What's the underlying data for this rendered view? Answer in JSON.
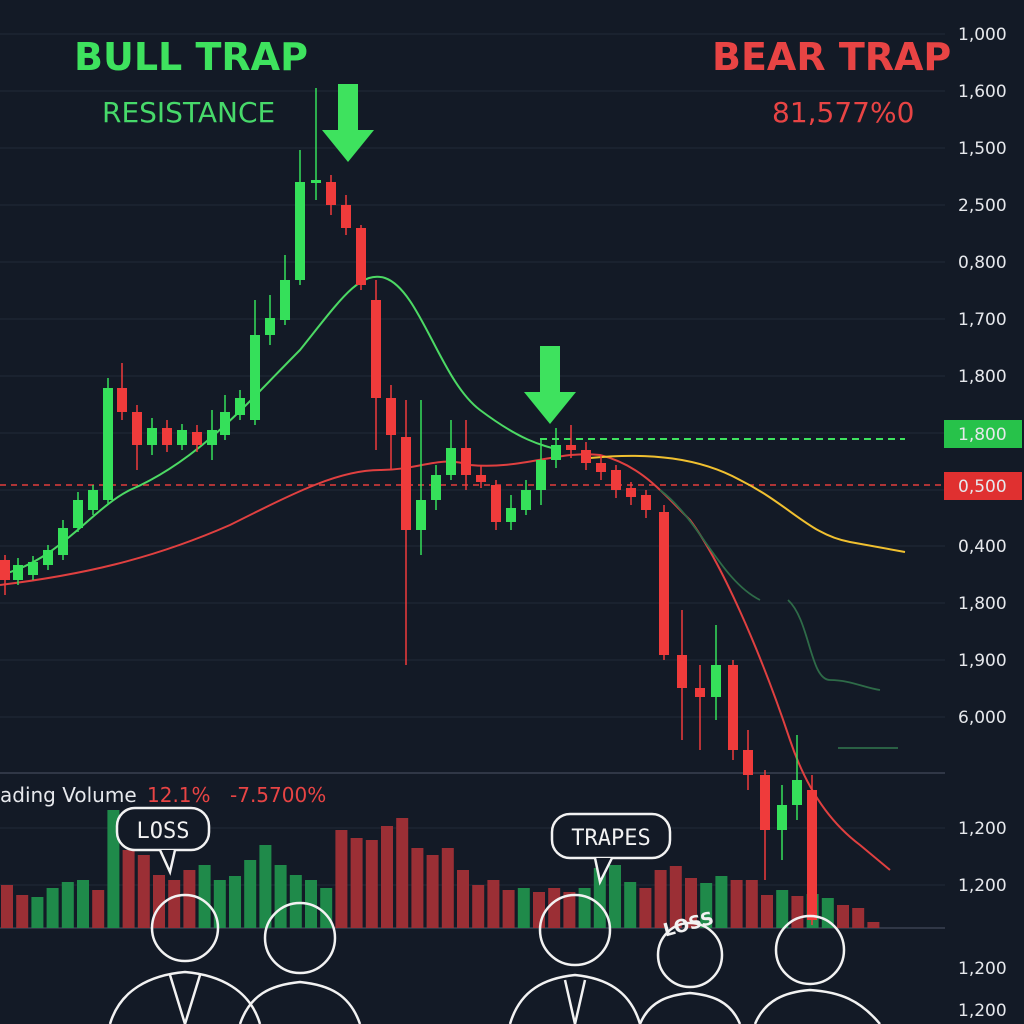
{
  "header": {
    "left_title": "BULL TRAP",
    "left_subtitle": "RESISTANCE",
    "right_title": "BEAR TRAP",
    "right_subtitle": "81,577%0"
  },
  "price_axis": {
    "upper": [
      "1,000",
      "1,600",
      "1,500",
      "2,500",
      "0,800",
      "1,700",
      "1,800"
    ],
    "support_level": "1,800",
    "resistance_level": "0,500",
    "lower": [
      "0,400",
      "1,800",
      "1,900",
      "6,000"
    ]
  },
  "volume_axis": [
    "1,200",
    "1,200",
    "1,200",
    "1,200"
  ],
  "volume_panel": {
    "label": "ading Volume",
    "change": "12.1%",
    "change_2": "-7.5700%"
  },
  "bubbles": [
    "LOSS",
    "TRAPES",
    "LOSS"
  ]
}
